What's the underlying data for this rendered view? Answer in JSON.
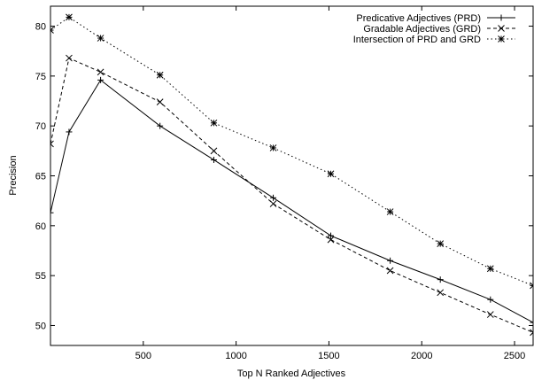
{
  "chart_data": {
    "type": "line",
    "xlabel": "Top N Ranked Adjectives",
    "ylabel": "Precision",
    "xlim": [
      0,
      2600
    ],
    "ylim": [
      48,
      82
    ],
    "xticks": [
      500,
      1000,
      1500,
      2000,
      2500
    ],
    "yticks": [
      50,
      55,
      60,
      65,
      70,
      75,
      80
    ],
    "grid": false,
    "legend_position": "top-right",
    "series": [
      {
        "name": "Predicative Adjectives (PRD)",
        "marker": "plus",
        "dash": "solid",
        "x": [
          0,
          100,
          270,
          590,
          880,
          1200,
          1510,
          1830,
          2100,
          2370,
          2600
        ],
        "y": [
          61.3,
          69.4,
          74.6,
          70.0,
          66.6,
          62.8,
          59.0,
          56.5,
          54.6,
          52.6,
          50.3
        ]
      },
      {
        "name": "Gradable Adjectives (GRD)",
        "marker": "cross",
        "dash": "dashed",
        "x": [
          0,
          100,
          270,
          590,
          880,
          1200,
          1510,
          1830,
          2100,
          2370,
          2600
        ],
        "y": [
          68.2,
          76.8,
          75.4,
          72.4,
          67.5,
          62.2,
          58.6,
          55.5,
          53.3,
          51.1,
          49.3
        ]
      },
      {
        "name": "Intersection of PRD and GRD",
        "marker": "star",
        "dash": "dotted",
        "x": [
          0,
          100,
          270,
          590,
          880,
          1200,
          1510,
          1830,
          2100,
          2370,
          2600
        ],
        "y": [
          79.6,
          80.9,
          78.8,
          75.1,
          70.3,
          67.8,
          65.2,
          61.4,
          58.2,
          55.7,
          54.0
        ]
      }
    ]
  }
}
